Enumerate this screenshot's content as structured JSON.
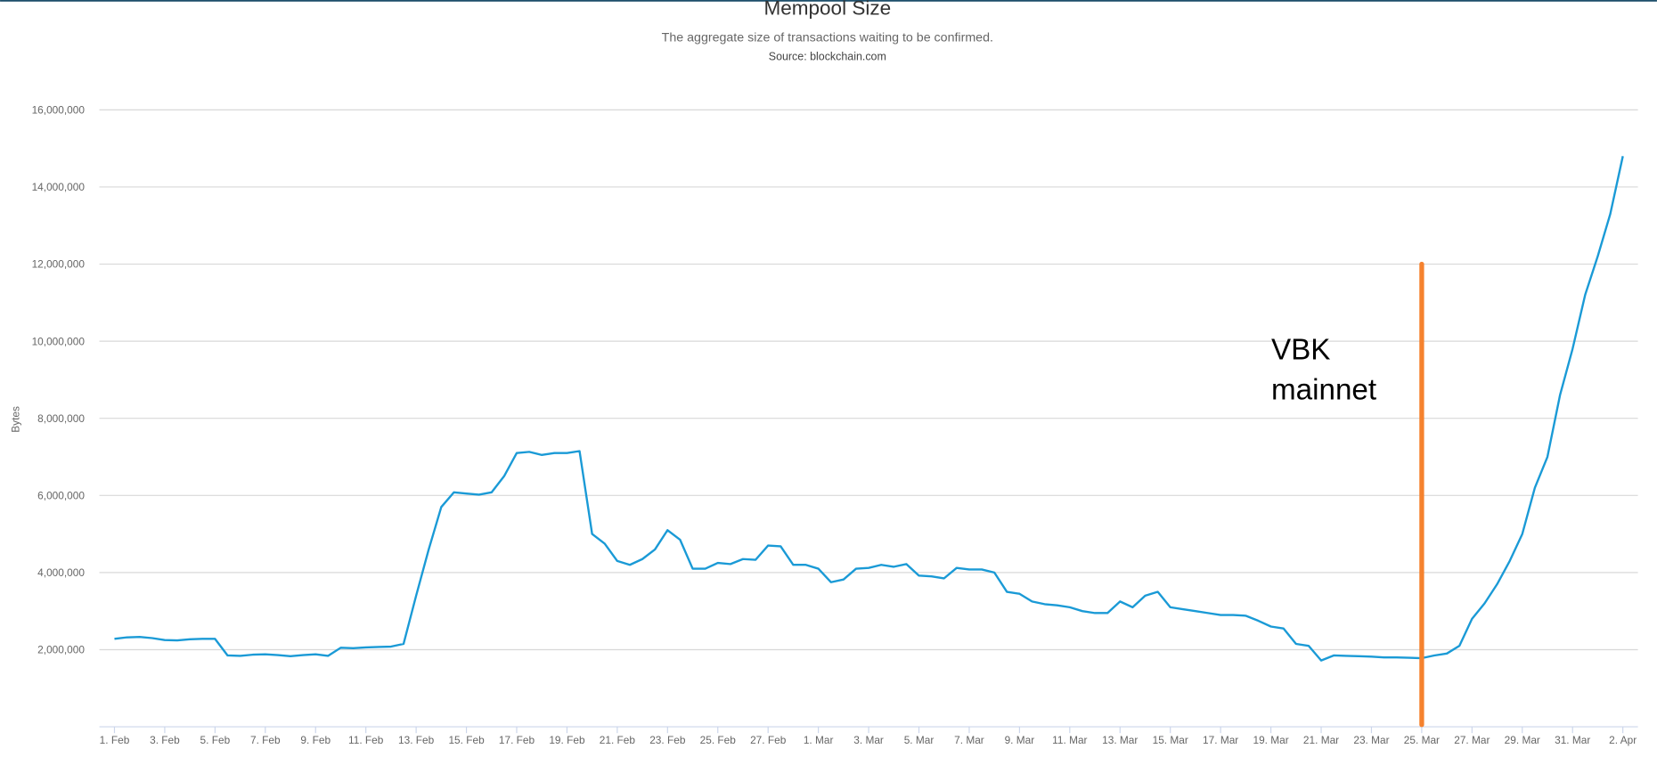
{
  "chart_data": {
    "type": "line",
    "title": "Mempool Size",
    "subtitle": "The aggregate size of transactions waiting to be confirmed.",
    "source": "Source: blockchain.com",
    "y_label": "Bytes",
    "grid": true,
    "xlim": [
      -0.6,
      60.6
    ],
    "ylim": [
      0,
      16000000
    ],
    "yticks": [
      {
        "value": 2000000,
        "label": "2,000,000"
      },
      {
        "value": 4000000,
        "label": "4,000,000"
      },
      {
        "value": 6000000,
        "label": "6,000,000"
      },
      {
        "value": 8000000,
        "label": "8,000,000"
      },
      {
        "value": 10000000,
        "label": "10,000,000"
      },
      {
        "value": 12000000,
        "label": "12,000,000"
      },
      {
        "value": 14000000,
        "label": "14,000,000"
      },
      {
        "value": 16000000,
        "label": "16,000,000"
      }
    ],
    "xticks": [
      {
        "value": 0,
        "label": "1. Feb"
      },
      {
        "value": 2,
        "label": "3. Feb"
      },
      {
        "value": 4,
        "label": "5. Feb"
      },
      {
        "value": 6,
        "label": "7. Feb"
      },
      {
        "value": 8,
        "label": "9. Feb"
      },
      {
        "value": 10,
        "label": "11. Feb"
      },
      {
        "value": 12,
        "label": "13. Feb"
      },
      {
        "value": 14,
        "label": "15. Feb"
      },
      {
        "value": 16,
        "label": "17. Feb"
      },
      {
        "value": 18,
        "label": "19. Feb"
      },
      {
        "value": 20,
        "label": "21. Feb"
      },
      {
        "value": 22,
        "label": "23. Feb"
      },
      {
        "value": 24,
        "label": "25. Feb"
      },
      {
        "value": 26,
        "label": "27. Feb"
      },
      {
        "value": 28,
        "label": "1. Mar"
      },
      {
        "value": 30,
        "label": "3. Mar"
      },
      {
        "value": 32,
        "label": "5. Mar"
      },
      {
        "value": 34,
        "label": "7. Mar"
      },
      {
        "value": 36,
        "label": "9. Mar"
      },
      {
        "value": 38,
        "label": "11. Mar"
      },
      {
        "value": 40,
        "label": "13. Mar"
      },
      {
        "value": 42,
        "label": "15. Mar"
      },
      {
        "value": 44,
        "label": "17. Mar"
      },
      {
        "value": 46,
        "label": "19. Mar"
      },
      {
        "value": 48,
        "label": "21. Mar"
      },
      {
        "value": 50,
        "label": "23. Mar"
      },
      {
        "value": 52,
        "label": "25. Mar"
      },
      {
        "value": 54,
        "label": "27. Mar"
      },
      {
        "value": 56,
        "label": "29. Mar"
      },
      {
        "value": 58,
        "label": "31. Mar"
      },
      {
        "value": 60,
        "label": "2. Apr"
      }
    ],
    "x": [
      0,
      0.5,
      1,
      1.5,
      2,
      2.5,
      3,
      3.5,
      4,
      4.5,
      5,
      5.5,
      6,
      6.5,
      7,
      7.5,
      8,
      8.5,
      9,
      9.5,
      10,
      10.5,
      11,
      11.5,
      12,
      12.5,
      13,
      13.5,
      14,
      14.5,
      15,
      15.5,
      16,
      16.5,
      17,
      17.5,
      18,
      18.5,
      19,
      19.5,
      20,
      20.5,
      21,
      21.5,
      22,
      22.5,
      23,
      23.5,
      24,
      24.5,
      25,
      25.5,
      26,
      26.5,
      27,
      27.5,
      28,
      28.5,
      29,
      29.5,
      30,
      30.5,
      31,
      31.5,
      32,
      32.5,
      33,
      33.5,
      34,
      34.5,
      35,
      35.5,
      36,
      36.5,
      37,
      37.5,
      38,
      38.5,
      39,
      39.5,
      40,
      40.5,
      41,
      41.5,
      42,
      42.5,
      43,
      43.5,
      44,
      44.5,
      45,
      45.5,
      46,
      46.5,
      47,
      47.5,
      48,
      48.5,
      49,
      49.5,
      50,
      50.5,
      51,
      51.5,
      52,
      52.5,
      53,
      53.5,
      54,
      54.5,
      55,
      55.5,
      56,
      56.5,
      57,
      57.5,
      58,
      58.5,
      59,
      59.5,
      60
    ],
    "series": [
      {
        "color": "#1a9ad6",
        "values": [
          2280000,
          2320000,
          2330000,
          2300000,
          2250000,
          2240000,
          2270000,
          2280000,
          2280000,
          1850000,
          1840000,
          1870000,
          1880000,
          1860000,
          1830000,
          1860000,
          1880000,
          1840000,
          2050000,
          2040000,
          2060000,
          2070000,
          2080000,
          2150000,
          3400000,
          4600000,
          5700000,
          6080000,
          6050000,
          6020000,
          6080000,
          6500000,
          7100000,
          7130000,
          7050000,
          7100000,
          7100000,
          7150000,
          5000000,
          4750000,
          4300000,
          4200000,
          4350000,
          4600000,
          5100000,
          4850000,
          4100000,
          4100000,
          4250000,
          4220000,
          4350000,
          4330000,
          4700000,
          4680000,
          4200000,
          4200000,
          4100000,
          3750000,
          3820000,
          4100000,
          4120000,
          4200000,
          4150000,
          4220000,
          3920000,
          3900000,
          3850000,
          4120000,
          4080000,
          4080000,
          4000000,
          3500000,
          3450000,
          3250000,
          3180000,
          3150000,
          3100000,
          3000000,
          2950000,
          2950000,
          3250000,
          3100000,
          3400000,
          3500000,
          3100000,
          3050000,
          3000000,
          2950000,
          2900000,
          2900000,
          2880000,
          2750000,
          2600000,
          2550000,
          2150000,
          2100000,
          1720000,
          1850000,
          1840000,
          1830000,
          1820000,
          1800000,
          1800000,
          1790000,
          1780000,
          1850000,
          1900000,
          2100000,
          2800000,
          3200000,
          3700000,
          4300000,
          5000000,
          6200000,
          7000000,
          8600000,
          9800000,
          11200000,
          12200000,
          13300000,
          14800000
        ]
      }
    ],
    "annotation": {
      "lines": [
        "VBK",
        "mainnet"
      ],
      "x": 52,
      "y": [
        0,
        12000000
      ],
      "color": "#f5822e"
    }
  }
}
